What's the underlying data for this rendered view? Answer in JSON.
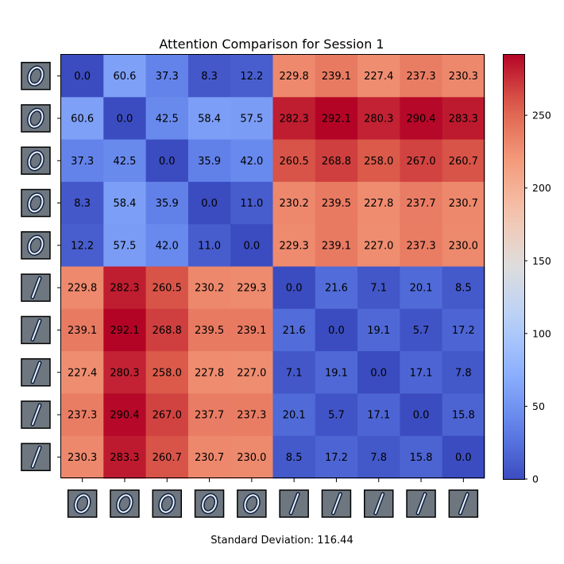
{
  "chart_data": {
    "type": "heatmap",
    "title": "Attention Comparison for Session 1",
    "footer": "Standard Deviation: 116.44",
    "row_thumbnails": [
      "digit-0",
      "digit-0",
      "digit-0",
      "digit-0",
      "digit-0",
      "digit-1",
      "digit-1",
      "digit-1",
      "digit-1",
      "digit-1"
    ],
    "col_thumbnails": [
      "digit-0",
      "digit-0",
      "digit-0",
      "digit-0",
      "digit-0",
      "digit-1",
      "digit-1",
      "digit-1",
      "digit-1",
      "digit-1"
    ],
    "matrix": [
      [
        0.0,
        60.6,
        37.3,
        8.3,
        12.2,
        229.8,
        239.1,
        227.4,
        237.3,
        230.3
      ],
      [
        60.6,
        0.0,
        42.5,
        58.4,
        57.5,
        282.3,
        292.1,
        280.3,
        290.4,
        283.3
      ],
      [
        37.3,
        42.5,
        0.0,
        35.9,
        42.0,
        260.5,
        268.8,
        258.0,
        267.0,
        260.7
      ],
      [
        8.3,
        58.4,
        35.9,
        0.0,
        11.0,
        230.2,
        239.5,
        227.8,
        237.7,
        230.7
      ],
      [
        12.2,
        57.5,
        42.0,
        11.0,
        0.0,
        229.3,
        239.1,
        227.0,
        237.3,
        230.0
      ],
      [
        229.8,
        282.3,
        260.5,
        230.2,
        229.3,
        0.0,
        21.6,
        7.1,
        20.1,
        8.5
      ],
      [
        239.1,
        292.1,
        268.8,
        239.5,
        239.1,
        21.6,
        0.0,
        19.1,
        5.7,
        17.2
      ],
      [
        227.4,
        280.3,
        258.0,
        227.8,
        227.0,
        7.1,
        19.1,
        0.0,
        17.1,
        7.8
      ],
      [
        237.3,
        290.4,
        267.0,
        237.7,
        237.3,
        20.1,
        5.7,
        17.1,
        0.0,
        15.8
      ],
      [
        230.3,
        283.3,
        260.7,
        230.7,
        230.0,
        8.5,
        17.2,
        7.8,
        15.8,
        0.0
      ]
    ],
    "colormap": "coolwarm",
    "vmin": 0,
    "vmax": 292.1,
    "colorbar_ticks": [
      0,
      50,
      100,
      150,
      200,
      250
    ]
  }
}
